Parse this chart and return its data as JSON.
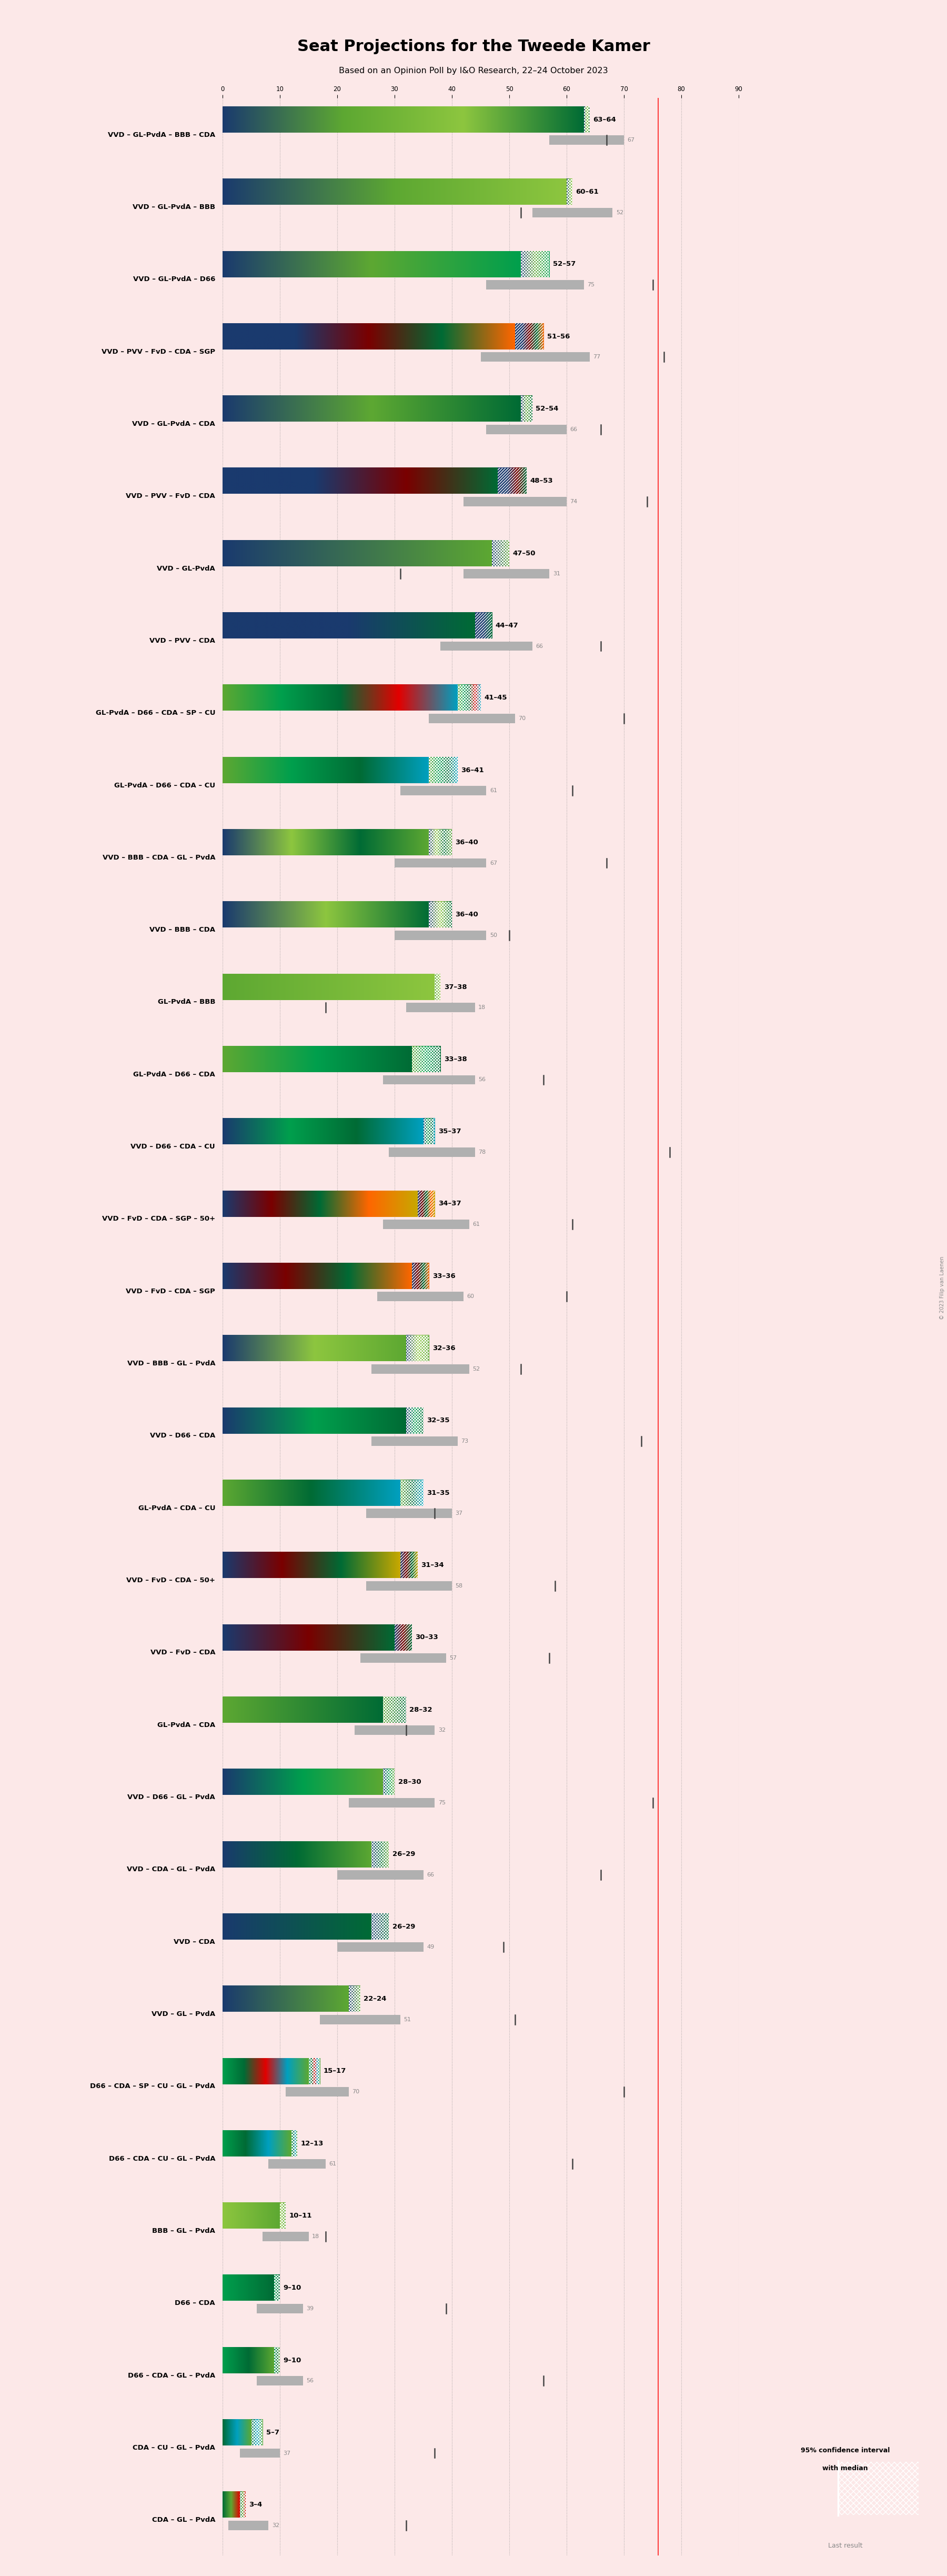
{
  "title": "Seat Projections for the Tweede Kamer",
  "subtitle": "Based on an Opinion Poll by IéO Research, 22–24 October 2023",
  "subtitle2": "Based on an Opinion Poll by I&O Research, 22–24 October 2023",
  "background_color": "#fce8e8",
  "majority": 76,
  "coalitions": [
    {
      "label": "VVD – GL-PvdA – BBB – CDA",
      "range_low": 63,
      "range_high": 64,
      "last_result": 67,
      "colors": [
        "#1a3a6e",
        "#5da832",
        "#8dc63f",
        "#006b35"
      ],
      "ci_low": 57,
      "ci_high": 70,
      "hatch": "xx",
      "underline": false
    },
    {
      "label": "VVD – GL-PvdA – BBB",
      "range_low": 60,
      "range_high": 61,
      "last_result": 52,
      "colors": [
        "#1a3a6e",
        "#5da832",
        "#8dc63f"
      ],
      "ci_low": 54,
      "ci_high": 68,
      "hatch": "xx",
      "underline": false
    },
    {
      "label": "VVD – GL-PvdA – D66",
      "range_low": 52,
      "range_high": 57,
      "last_result": 75,
      "colors": [
        "#1a3a6e",
        "#5da832",
        "#009f4d"
      ],
      "ci_low": 46,
      "ci_high": 63,
      "hatch": "xx",
      "underline": false
    },
    {
      "label": "VVD – PVV – FvD – CDA – SGP",
      "range_low": 51,
      "range_high": 56,
      "last_result": 77,
      "colors": [
        "#1a3a6e",
        "#1a3a6e",
        "#7a0000",
        "#006b35",
        "#ff6600"
      ],
      "ci_low": 45,
      "ci_high": 64,
      "hatch": "//",
      "underline": false
    },
    {
      "label": "VVD – GL-PvdA – CDA",
      "range_low": 52,
      "range_high": 54,
      "last_result": 66,
      "colors": [
        "#1a3a6e",
        "#5da832",
        "#006b35"
      ],
      "ci_low": 46,
      "ci_high": 60,
      "hatch": "xx",
      "underline": false
    },
    {
      "label": "VVD – PVV – FvD – CDA",
      "range_low": 48,
      "range_high": 53,
      "last_result": 74,
      "colors": [
        "#1a3a6e",
        "#1a3a6e",
        "#7a0000",
        "#006b35"
      ],
      "ci_low": 42,
      "ci_high": 60,
      "hatch": "//",
      "underline": false
    },
    {
      "label": "VVD – GL-PvdA",
      "range_low": 47,
      "range_high": 50,
      "last_result": 31,
      "colors": [
        "#1a3a6e",
        "#5da832"
      ],
      "ci_low": 42,
      "ci_high": 57,
      "hatch": "xx",
      "underline": false
    },
    {
      "label": "VVD – PVV – CDA",
      "range_low": 44,
      "range_high": 47,
      "last_result": 66,
      "colors": [
        "#1a3a6e",
        "#1a3a6e",
        "#006b35"
      ],
      "ci_low": 38,
      "ci_high": 54,
      "hatch": "//",
      "underline": false
    },
    {
      "label": "GL-PvdA – D66 – CDA – SP – CU",
      "range_low": 41,
      "range_high": 45,
      "last_result": 70,
      "colors": [
        "#5da832",
        "#009f4d",
        "#006b35",
        "#e30000",
        "#00a0c0"
      ],
      "ci_low": 36,
      "ci_high": 51,
      "hatch": "xx",
      "underline": false
    },
    {
      "label": "GL-PvdA – D66 – CDA – CU",
      "range_low": 36,
      "range_high": 41,
      "last_result": 61,
      "colors": [
        "#5da832",
        "#009f4d",
        "#006b35",
        "#00a0c0"
      ],
      "ci_low": 31,
      "ci_high": 46,
      "hatch": "xx",
      "underline": false
    },
    {
      "label": "VVD – BBB – CDA – GL – PvdA",
      "range_low": 36,
      "range_high": 40,
      "last_result": 67,
      "colors": [
        "#1a3a6e",
        "#8dc63f",
        "#006b35",
        "#5da832"
      ],
      "ci_low": 30,
      "ci_high": 46,
      "hatch": "xx",
      "underline": false
    },
    {
      "label": "VVD – BBB – CDA",
      "range_low": 36,
      "range_high": 40,
      "last_result": 50,
      "colors": [
        "#1a3a6e",
        "#8dc63f",
        "#006b35"
      ],
      "ci_low": 30,
      "ci_high": 46,
      "hatch": "xx",
      "underline": false
    },
    {
      "label": "GL-PvdA – BBB",
      "range_low": 37,
      "range_high": 38,
      "last_result": 18,
      "colors": [
        "#5da832",
        "#8dc63f"
      ],
      "ci_low": 32,
      "ci_high": 44,
      "hatch": "xx",
      "underline": false
    },
    {
      "label": "GL-PvdA – D66 – CDA",
      "range_low": 33,
      "range_high": 38,
      "last_result": 56,
      "colors": [
        "#5da832",
        "#009f4d",
        "#006b35"
      ],
      "ci_low": 28,
      "ci_high": 44,
      "hatch": "xx",
      "underline": false
    },
    {
      "label": "VVD – D66 – CDA – CU",
      "range_low": 35,
      "range_high": 37,
      "last_result": 78,
      "colors": [
        "#1a3a6e",
        "#009f4d",
        "#006b35",
        "#00a0c0"
      ],
      "ci_low": 29,
      "ci_high": 44,
      "hatch": "xx",
      "underline": true
    },
    {
      "label": "VVD – FvD – CDA – SGP – 50+",
      "range_low": 34,
      "range_high": 37,
      "last_result": 61,
      "colors": [
        "#1a3a6e",
        "#7a0000",
        "#006b35",
        "#ff6600",
        "#c8a800"
      ],
      "ci_low": 28,
      "ci_high": 43,
      "hatch": "//",
      "underline": false
    },
    {
      "label": "VVD – FvD – CDA – SGP",
      "range_low": 33,
      "range_high": 36,
      "last_result": 60,
      "colors": [
        "#1a3a6e",
        "#7a0000",
        "#006b35",
        "#ff6600"
      ],
      "ci_low": 27,
      "ci_high": 42,
      "hatch": "//",
      "underline": false
    },
    {
      "label": "VVD – BBB – GL – PvdA",
      "range_low": 32,
      "range_high": 36,
      "last_result": 52,
      "colors": [
        "#1a3a6e",
        "#8dc63f",
        "#5da832"
      ],
      "ci_low": 26,
      "ci_high": 43,
      "hatch": "xx",
      "underline": false
    },
    {
      "label": "VVD – D66 – CDA",
      "range_low": 32,
      "range_high": 35,
      "last_result": 73,
      "colors": [
        "#1a3a6e",
        "#009f4d",
        "#006b35"
      ],
      "ci_low": 26,
      "ci_high": 41,
      "hatch": "xx",
      "underline": false
    },
    {
      "label": "GL-PvdA – CDA – CU",
      "range_low": 31,
      "range_high": 35,
      "last_result": 37,
      "colors": [
        "#5da832",
        "#006b35",
        "#00a0c0"
      ],
      "ci_low": 25,
      "ci_high": 40,
      "hatch": "xx",
      "underline": false
    },
    {
      "label": "VVD – FvD – CDA – 50+",
      "range_low": 31,
      "range_high": 34,
      "last_result": 58,
      "colors": [
        "#1a3a6e",
        "#7a0000",
        "#006b35",
        "#c8a800"
      ],
      "ci_low": 25,
      "ci_high": 40,
      "hatch": "//",
      "underline": false
    },
    {
      "label": "VVD – FvD – CDA",
      "range_low": 30,
      "range_high": 33,
      "last_result": 57,
      "colors": [
        "#1a3a6e",
        "#7a0000",
        "#006b35"
      ],
      "ci_low": 24,
      "ci_high": 39,
      "hatch": "//",
      "underline": false
    },
    {
      "label": "GL-PvdA – CDA",
      "range_low": 28,
      "range_high": 32,
      "last_result": 32,
      "colors": [
        "#5da832",
        "#006b35"
      ],
      "ci_low": 23,
      "ci_high": 37,
      "hatch": "xx",
      "underline": false
    },
    {
      "label": "VVD – D66 – GL – PvdA",
      "range_low": 28,
      "range_high": 30,
      "last_result": 75,
      "colors": [
        "#1a3a6e",
        "#009f4d",
        "#5da832"
      ],
      "ci_low": 22,
      "ci_high": 37,
      "hatch": "xx",
      "underline": false
    },
    {
      "label": "VVD – CDA – GL – PvdA",
      "range_low": 26,
      "range_high": 29,
      "last_result": 66,
      "colors": [
        "#1a3a6e",
        "#006b35",
        "#5da832"
      ],
      "ci_low": 20,
      "ci_high": 35,
      "hatch": "xx",
      "underline": false
    },
    {
      "label": "VVD – CDA",
      "range_low": 26,
      "range_high": 29,
      "last_result": 49,
      "colors": [
        "#1a3a6e",
        "#006b35"
      ],
      "ci_low": 20,
      "ci_high": 35,
      "hatch": "xx",
      "underline": false
    },
    {
      "label": "VVD – GL – PvdA",
      "range_low": 22,
      "range_high": 24,
      "last_result": 51,
      "colors": [
        "#1a3a6e",
        "#5da832"
      ],
      "ci_low": 17,
      "ci_high": 31,
      "hatch": "xx",
      "underline": false
    },
    {
      "label": "D66 – CDA – SP – CU – GL – PvdA",
      "range_low": 15,
      "range_high": 17,
      "last_result": 70,
      "colors": [
        "#009f4d",
        "#006b35",
        "#e30000",
        "#00a0c0",
        "#5da832"
      ],
      "ci_low": 11,
      "ci_high": 22,
      "hatch": "xx",
      "underline": false
    },
    {
      "label": "D66 – CDA – CU – GL – PvdA",
      "range_low": 12,
      "range_high": 13,
      "last_result": 61,
      "colors": [
        "#009f4d",
        "#006b35",
        "#00a0c0",
        "#5da832"
      ],
      "ci_low": 8,
      "ci_high": 18,
      "hatch": "xx",
      "underline": false
    },
    {
      "label": "BBB – GL – PvdA",
      "range_low": 10,
      "range_high": 11,
      "last_result": 18,
      "colors": [
        "#8dc63f",
        "#5da832"
      ],
      "ci_low": 7,
      "ci_high": 15,
      "hatch": "xx",
      "underline": false
    },
    {
      "label": "D66 – CDA",
      "range_low": 9,
      "range_high": 10,
      "last_result": 39,
      "colors": [
        "#009f4d",
        "#006b35"
      ],
      "ci_low": 6,
      "ci_high": 14,
      "hatch": "xx",
      "underline": false
    },
    {
      "label": "D66 – CDA – GL – PvdA",
      "range_low": 9,
      "range_high": 10,
      "last_result": 56,
      "colors": [
        "#009f4d",
        "#006b35",
        "#5da832"
      ],
      "ci_low": 6,
      "ci_high": 14,
      "hatch": "xx",
      "underline": false
    },
    {
      "label": "CDA – CU – GL – PvdA",
      "range_low": 5,
      "range_high": 7,
      "last_result": 37,
      "colors": [
        "#006b35",
        "#00a0c0",
        "#5da832"
      ],
      "ci_low": 3,
      "ci_high": 10,
      "hatch": "xx",
      "underline": false
    },
    {
      "label": "CDA – GL – PvdA",
      "range_low": 3,
      "range_high": 4,
      "last_result": 32,
      "colors": [
        "#006b35",
        "#5da832",
        "#e30000"
      ],
      "ci_low": 1,
      "ci_high": 8,
      "hatch": "xx",
      "underline": false
    }
  ]
}
